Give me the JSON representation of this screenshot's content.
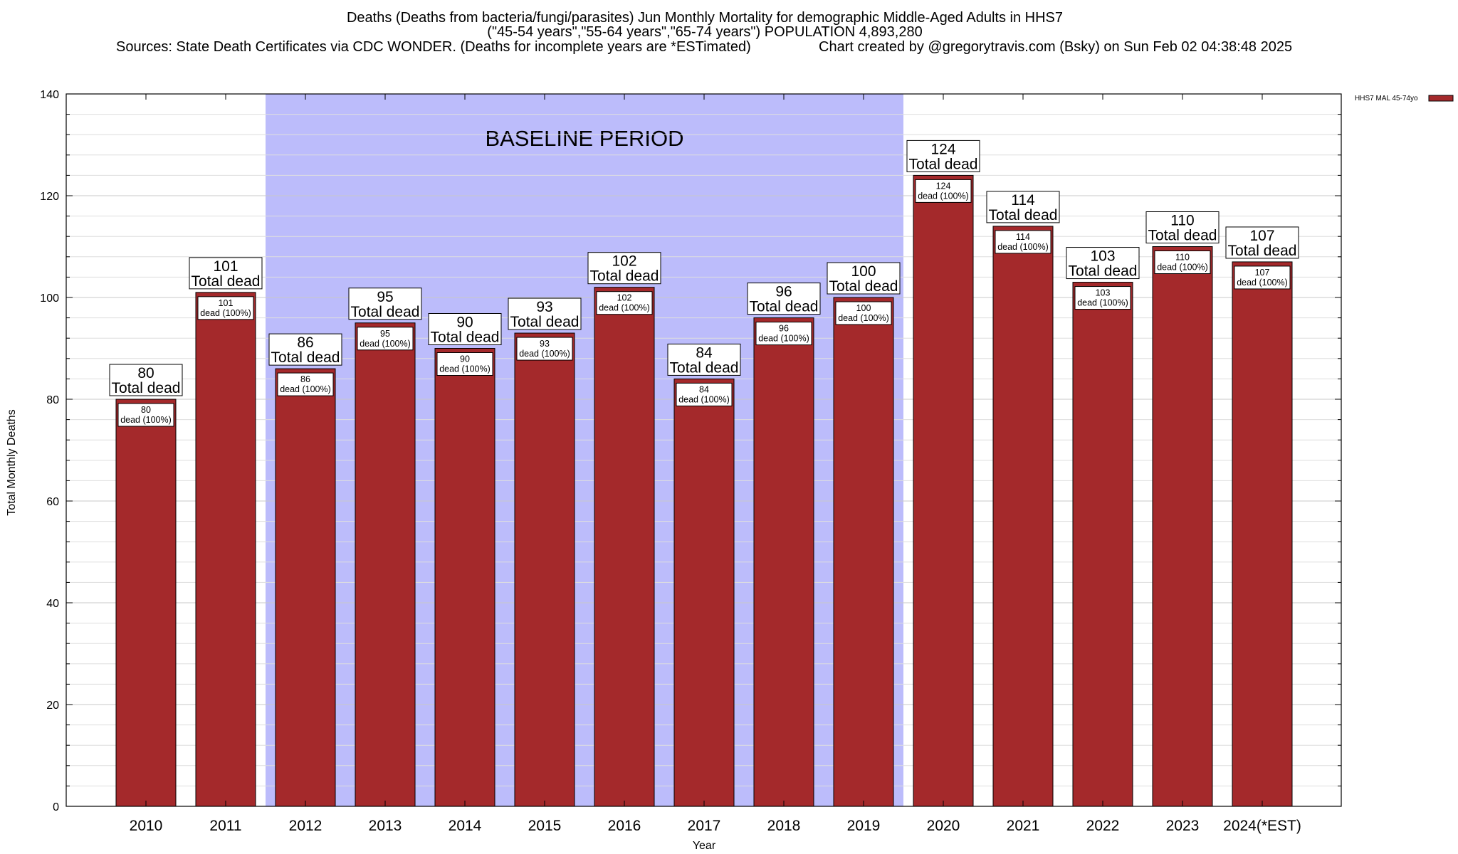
{
  "chart_data": {
    "type": "bar",
    "title_lines": [
      "Deaths (Deaths from bacteria/fungi/parasites) Jun Monthly Mortality for demographic Middle-Aged Adults in HHS7",
      "(\"45-54 years\",\"55-64 years\",\"65-74 years\") POPULATION 4,893,280"
    ],
    "source_left": "Sources: State Death Certificates via CDC WONDER. (Deaths for incomplete years are *ESTimated)",
    "source_right": "Chart created by @gregorytravis.com (Bsky) on Sun Feb 02 04:38:48 2025",
    "xlabel": "Year",
    "ylabel": "Total Monthly Deaths",
    "ylim": [
      0,
      140
    ],
    "y_ticks": [
      0,
      20,
      40,
      60,
      80,
      100,
      120,
      140
    ],
    "y_minor_step": 4,
    "grid": true,
    "categories": [
      "2010",
      "2011",
      "2012",
      "2013",
      "2014",
      "2015",
      "2016",
      "2017",
      "2018",
      "2019",
      "2020",
      "2021",
      "2022",
      "2023",
      "2024(*EST)"
    ],
    "series": [
      {
        "name": "HHS7 MAL 45-74yo",
        "color": "#a4292b",
        "values": [
          80,
          101,
          86,
          95,
          90,
          93,
          102,
          84,
          96,
          100,
          124,
          114,
          103,
          110,
          107
        ]
      }
    ],
    "top_label_suffix": "Total dead",
    "inner_label_suffix": "dead (100%)",
    "baseline_period": {
      "label": "BASELINE PERIOD",
      "start": "2012",
      "end": "2019",
      "color": "#bcbcfb"
    },
    "legend_position": "top-right"
  }
}
